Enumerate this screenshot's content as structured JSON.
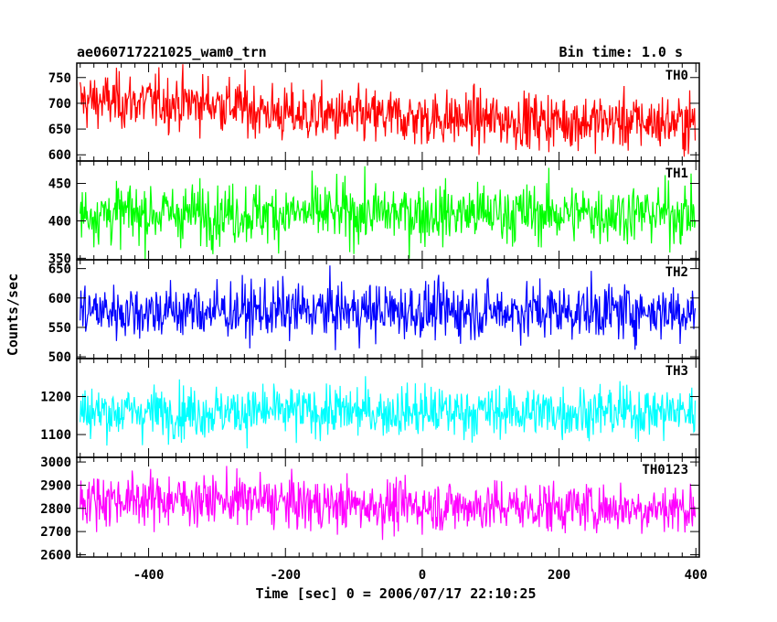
{
  "header": {
    "title": "ae060717221025_wam0_trn",
    "bin_time": "Bin time: 1.0 s"
  },
  "chart_data": {
    "type": "line",
    "title": "ae060717221025_wam0_trn",
    "xlabel": "Time [sec] 0 = 2006/07/17 22:10:25",
    "ylabel": "Counts/sec",
    "xlim": [
      -505,
      405
    ],
    "x_ticks": [
      "-400",
      "-200",
      "0",
      "200",
      "400"
    ],
    "x_tick_values": [
      -400,
      -200,
      0,
      200,
      400
    ],
    "x_range": [
      -500,
      399
    ],
    "panels": [
      {
        "name": "TH0",
        "color": "#ff0000",
        "ylim": [
          588,
          778
        ],
        "y_ticks": [
          600,
          650,
          700,
          750
        ],
        "trend_knots": [
          [
            -500,
            705
          ],
          [
            -300,
            700
          ],
          [
            -200,
            678
          ],
          [
            100,
            668
          ],
          [
            400,
            662
          ]
        ],
        "noise_sd": 27
      },
      {
        "name": "TH1",
        "color": "#00ff00",
        "ylim": [
          348,
          480
        ],
        "y_ticks": [
          350,
          400,
          450
        ],
        "trend_knots": [
          [
            -500,
            410
          ],
          [
            400,
            410
          ]
        ],
        "noise_sd": 20
      },
      {
        "name": "TH2",
        "color": "#0000ff",
        "ylim": [
          497,
          665
        ],
        "y_ticks": [
          500,
          550,
          600,
          650
        ],
        "trend_knots": [
          [
            -500,
            578
          ],
          [
            400,
            578
          ]
        ],
        "noise_sd": 24
      },
      {
        "name": "TH3",
        "color": "#00ffff",
        "ylim": [
          1040,
          1300
        ],
        "y_ticks": [
          1100,
          1200
        ],
        "trend_knots": [
          [
            -500,
            1160
          ],
          [
            400,
            1160
          ]
        ],
        "noise_sd": 34
      },
      {
        "name": "TH0123",
        "color": "#ff00ff",
        "ylim": [
          2590,
          3020
        ],
        "y_ticks": [
          2600,
          2700,
          2800,
          2900,
          3000
        ],
        "trend_knots": [
          [
            -500,
            2840
          ],
          [
            -250,
            2835
          ],
          [
            -150,
            2815
          ],
          [
            400,
            2800
          ]
        ],
        "noise_sd": 55
      }
    ],
    "grid": false,
    "legend": "none"
  }
}
